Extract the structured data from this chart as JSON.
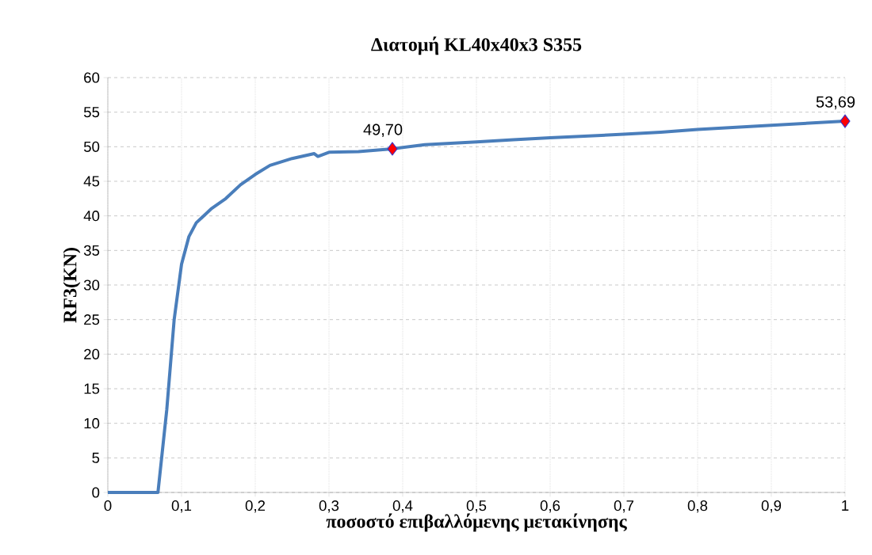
{
  "chart_data": {
    "type": "line",
    "title": "Διατομή KL40x40x3 S355",
    "xlabel": "ποσοστό επιβαλλόμενης μετακίνησης",
    "ylabel": "RF3(KN)",
    "xlim": [
      0,
      1
    ],
    "ylim": [
      0,
      60
    ],
    "xticks": [
      0,
      {
        "value": 0.1,
        "label": "0,1"
      },
      {
        "value": 0.2,
        "label": "0,2"
      },
      {
        "value": 0.3,
        "label": "0,3"
      },
      {
        "value": 0.4,
        "label": "0,4"
      },
      {
        "value": 0.5,
        "label": "0,5"
      },
      {
        "value": 0.6,
        "label": "0,6"
      },
      {
        "value": 0.7,
        "label": "0,7"
      },
      {
        "value": 0.8,
        "label": "0,8"
      },
      {
        "value": 0.9,
        "label": "0,9"
      },
      1
    ],
    "yticks": [
      0,
      5,
      10,
      15,
      20,
      25,
      30,
      35,
      40,
      45,
      50,
      55,
      60
    ],
    "grid": true,
    "series": [
      {
        "marker": "none",
        "color": "#4a7ebb",
        "x": [
          0,
          0.068,
          0.08,
          0.09,
          0.1,
          0.11,
          0.12,
          0.14,
          0.16,
          0.18,
          0.2,
          0.22,
          0.25,
          0.28,
          0.285,
          0.3,
          0.34,
          0.386,
          0.43,
          0.5,
          0.55,
          0.6,
          0.7,
          0.75,
          0.8,
          0.9,
          1
        ],
        "values": [
          0,
          0,
          12,
          25,
          33,
          37,
          39,
          41,
          42.5,
          44.5,
          46,
          47.3,
          48.3,
          49,
          48.6,
          49.2,
          49.3,
          49.7,
          50.3,
          50.7,
          51,
          51.3,
          51.8,
          52.1,
          52.5,
          53.1,
          53.7
        ]
      },
      {
        "type": "scatter",
        "marker": "diamond",
        "color": "#ff0000",
        "x": [
          0.386,
          1
        ],
        "values": [
          49.7,
          53.69
        ],
        "value_labels": [
          "49,70",
          "53,69"
        ]
      }
    ]
  }
}
